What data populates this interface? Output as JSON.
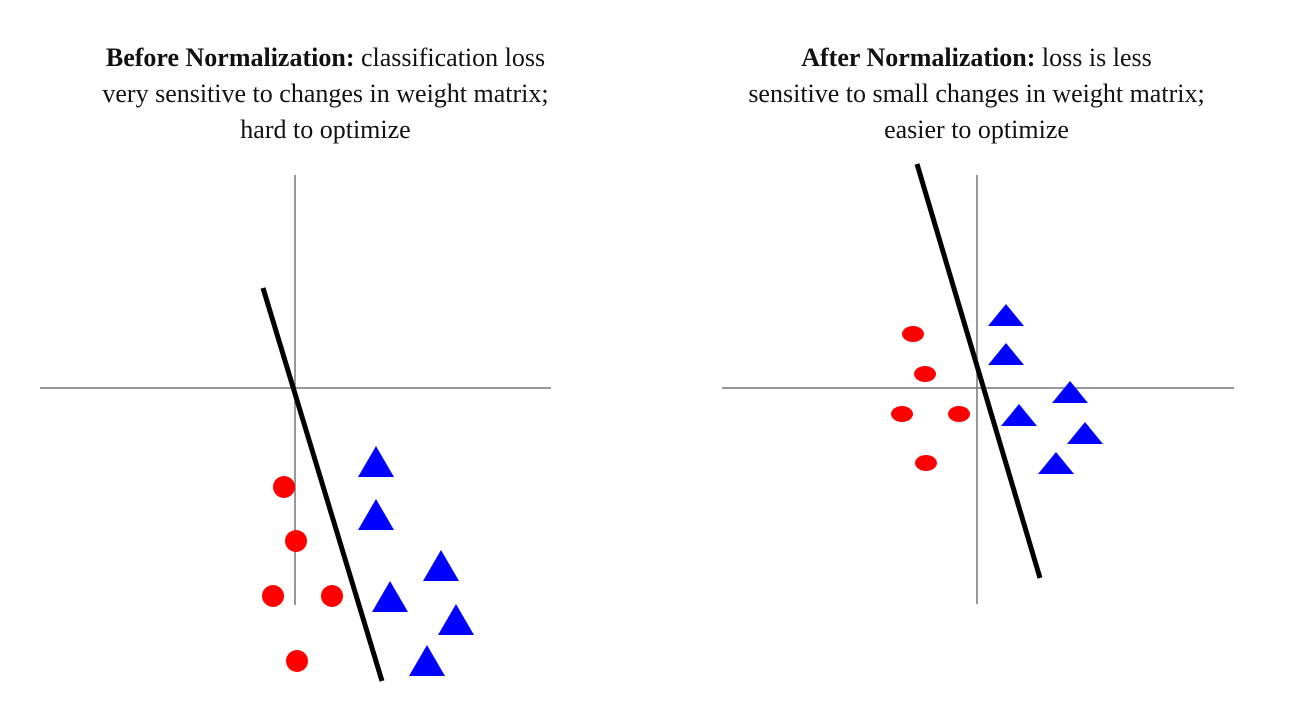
{
  "panels": [
    {
      "title_bold": "Before Normalization:",
      "title_rest": "classification loss",
      "title_line2": "very sensitive to changes in weight matrix;",
      "title_line3": "hard to optimize"
    },
    {
      "title_bold": "After Normalization:",
      "title_rest": "loss is less",
      "title_line2": "sensitive to small changes in weight matrix;",
      "title_line3": "easier to optimize"
    }
  ],
  "colors": {
    "class_a": "#ff0000",
    "class_b": "#0000ff",
    "boundary": "#000000",
    "axis": "#777777"
  }
}
